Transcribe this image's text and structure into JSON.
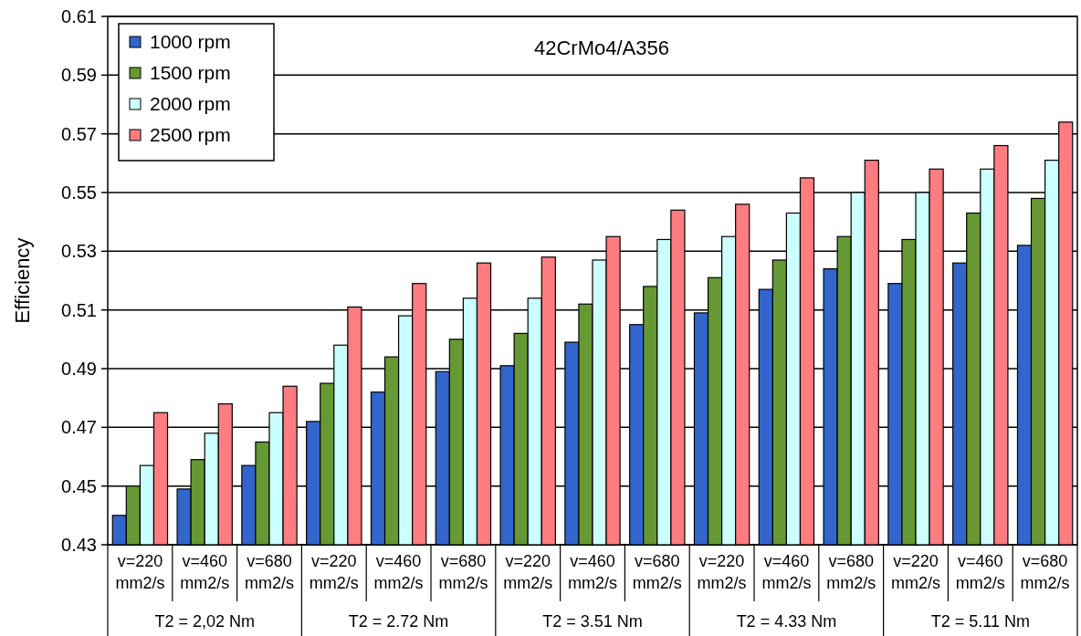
{
  "chart_data": {
    "type": "bar",
    "title": "42CrMo4/A356",
    "ylabel": "Efficiency",
    "categories": [
      "v=220 mm2/s",
      "v=460 mm2/s",
      "v=680 mm2/s",
      "v=220 mm2/s",
      "v=460 mm2/s",
      "v=680 mm2/s",
      "v=220 mm2/s",
      "v=460 mm2/s",
      "v=680 mm2/s",
      "v=220 mm2/s",
      "v=460 mm2/s",
      "v=680 mm2/s",
      "v=220 mm2/s",
      "v=460 mm2/s",
      "v=680 mm2/s"
    ],
    "annotations": [
      "T2 = 2,02 Nm",
      "T2 = 2.72 Nm",
      "T2 = 3.51 Nm",
      "T2 = 4.33 Nm",
      "T2 = 5.11 Nm"
    ],
    "series": [
      {
        "name": "1000 rpm",
        "color": "#3366cc",
        "values": [
          0.44,
          0.449,
          0.457,
          0.472,
          0.482,
          0.489,
          0.491,
          0.499,
          0.505,
          0.509,
          0.517,
          0.524,
          0.519,
          0.526,
          0.532
        ]
      },
      {
        "name": "1500 rpm",
        "color": "#669933",
        "values": [
          0.45,
          0.459,
          0.465,
          0.485,
          0.494,
          0.5,
          0.502,
          0.512,
          0.518,
          0.521,
          0.527,
          0.535,
          0.534,
          0.543,
          0.548
        ]
      },
      {
        "name": "2000 rpm",
        "color": "#ccffff",
        "values": [
          0.457,
          0.468,
          0.475,
          0.498,
          0.508,
          0.514,
          0.514,
          0.527,
          0.534,
          0.535,
          0.543,
          0.55,
          0.55,
          0.558,
          0.561
        ]
      },
      {
        "name": "2500 rpm",
        "color": "#ff7c80",
        "values": [
          0.475,
          0.478,
          0.484,
          0.511,
          0.519,
          0.526,
          0.528,
          0.535,
          0.544,
          0.546,
          0.555,
          0.561,
          0.558,
          0.566,
          0.574
        ]
      }
    ],
    "ylim": [
      0.43,
      0.61
    ],
    "yticks": [
      0.43,
      0.45,
      0.47,
      0.49,
      0.51,
      0.53,
      0.55,
      0.57,
      0.59,
      0.61
    ],
    "grid": "y",
    "legend": "top left"
  }
}
